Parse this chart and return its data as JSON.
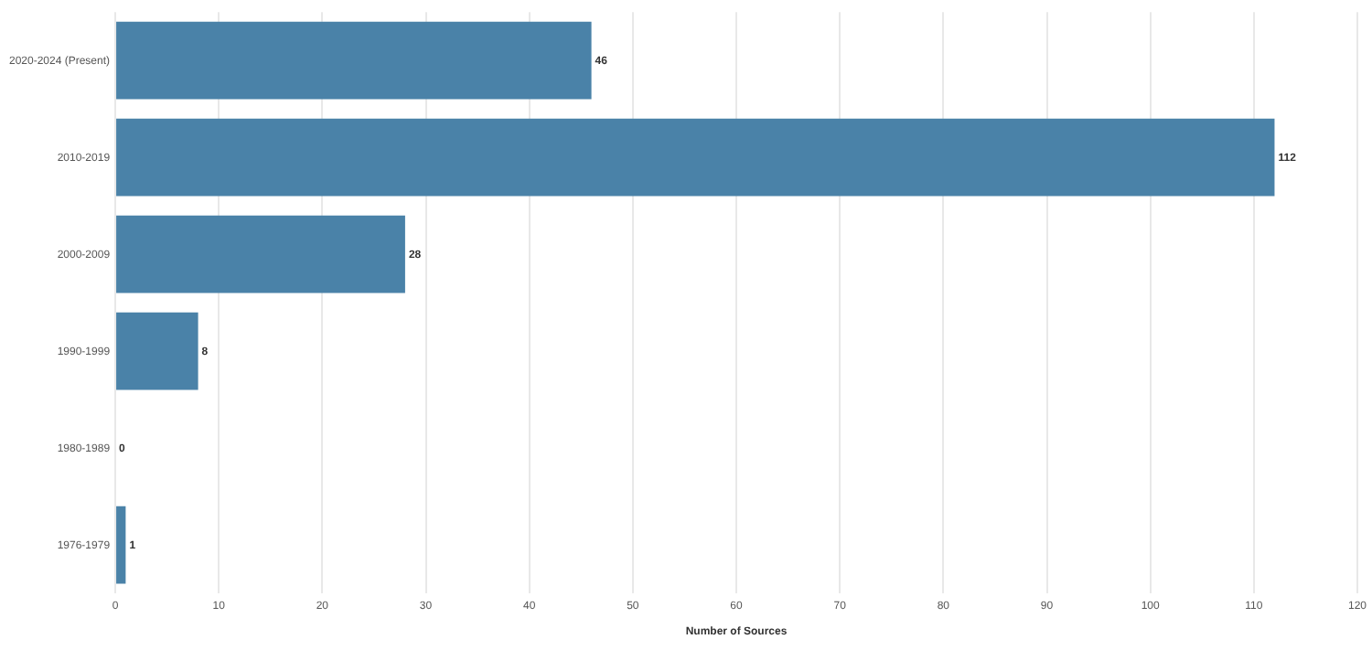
{
  "chart_data": {
    "type": "bar",
    "orientation": "horizontal",
    "xlabel": "Number of Sources",
    "categories": [
      "2020-2024 (Present)",
      "2010-2019",
      "2000-2009",
      "1990-1999",
      "1980-1989",
      "1976-1979"
    ],
    "values": [
      46,
      112,
      28,
      8,
      0,
      1
    ],
    "color": "#4a82a8",
    "xlim": [
      0,
      120
    ],
    "xticks": [
      0,
      10,
      20,
      30,
      40,
      50,
      60,
      70,
      80,
      90,
      100,
      110,
      120
    ],
    "grid": "x",
    "legend": false,
    "data_labels": true
  }
}
